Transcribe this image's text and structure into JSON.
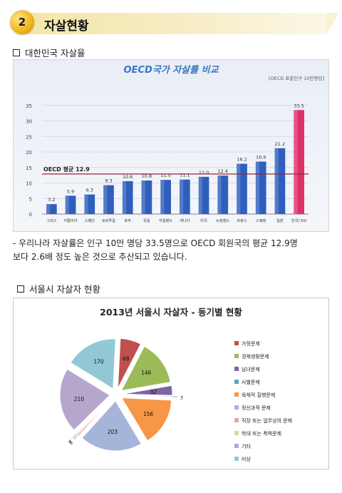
{
  "header": {
    "number": "2",
    "title": "자살현황"
  },
  "section1": {
    "heading": "대한민국 자살율"
  },
  "chart1": {
    "chart_data": {
      "type": "bar",
      "title": "OECD국가 자살률 비교",
      "note": "[OECD 표준인구 10만명당]",
      "categories": [
        "그리스",
        "이탈리아",
        "스페인",
        "포르투갈",
        "호주",
        "독일",
        "아일랜드",
        "캐나다",
        "미국",
        "뉴질랜드",
        "프랑스",
        "스웨덴",
        "일본",
        "한국('10)"
      ],
      "values": [
        3.2,
        5.9,
        6.3,
        9.3,
        10.6,
        10.8,
        11.0,
        11.1,
        12.0,
        12.4,
        16.2,
        16.9,
        21.2,
        33.5
      ],
      "value_labels": [
        "3.2",
        "5.9",
        "6.3",
        "9.3",
        "10.6",
        "10.8",
        "11.0",
        "11.1",
        "12.0",
        "12.4",
        "16.2",
        "16.9",
        "21.2",
        "33.5"
      ],
      "ylim": [
        0,
        40
      ],
      "yticks": [
        "0",
        "5",
        "10",
        "15",
        "20",
        "25",
        "30",
        "35"
      ],
      "reference_line": {
        "label": "OECD 평균 12.9",
        "value": 12.9
      },
      "colors": {
        "bar": "#2f5fbd",
        "highlight": "#e0306b",
        "ref": "#9b2335"
      }
    }
  },
  "paragraph": [
    "- 우리나라 자살률은 인구 10만 명당 33.5명으로 OECD 회원국의 평균 12.9명",
    "보다 2.6배 정도 높은 것으로 추산되고 있습니다."
  ],
  "section2": {
    "heading": "서울시 자살자 현황"
  },
  "chart2": {
    "chart_data": {
      "type": "pie",
      "title": "2013년 서울시 자살자 - 동기별 현황",
      "categories": [
        "가정문제",
        "경제생활문제",
        "남녀문제",
        "사별문제",
        "육체적 질병문제",
        "정신과적 문제",
        "직장 또는 업무상의 문제",
        "학대 또는 폭력문제",
        "기타",
        "미상"
      ],
      "values": [
        68,
        146,
        32,
        3,
        156,
        203,
        6,
        4,
        210,
        170
      ],
      "colors": [
        "#c0504d",
        "#9bbb59",
        "#8064a2",
        "#4bacc6",
        "#f79646",
        "#a5b4d9",
        "#e6a3a2",
        "#cfe0a5",
        "#b7a6cc",
        "#92c8d6"
      ],
      "legend_position": "right"
    }
  }
}
